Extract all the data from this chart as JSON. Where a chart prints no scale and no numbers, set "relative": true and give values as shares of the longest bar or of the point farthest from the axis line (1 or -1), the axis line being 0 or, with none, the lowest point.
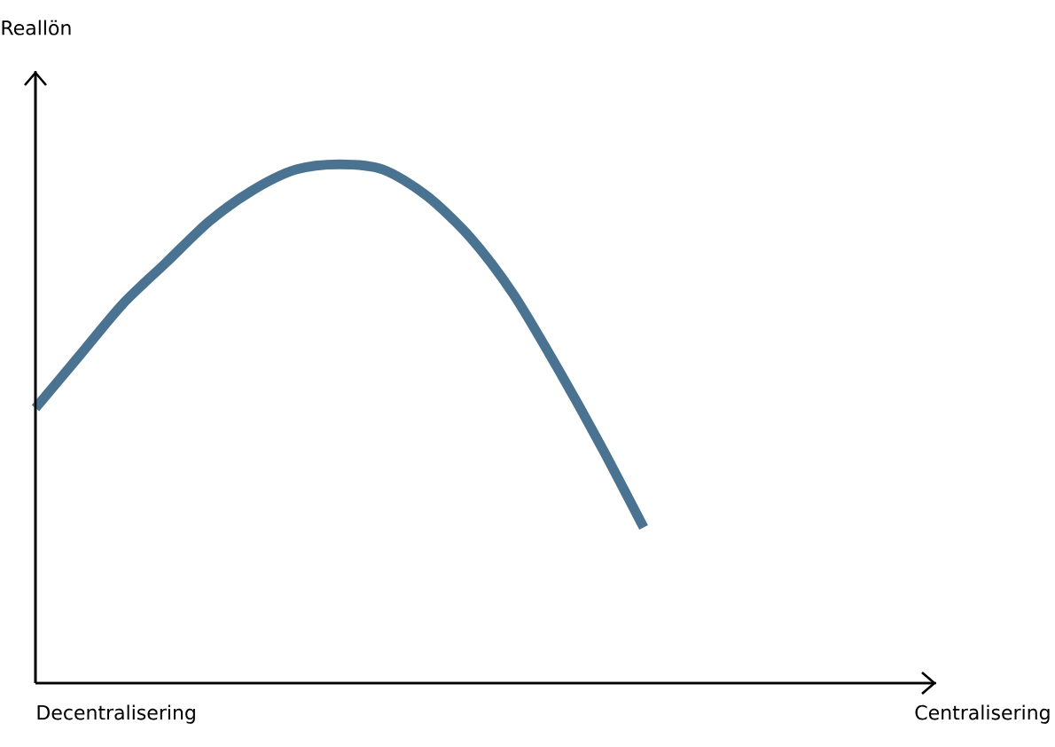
{
  "chart_data": {
    "type": "line",
    "relative": true,
    "annotations": [
      "Reallön",
      "Decentralisering",
      "Centralisering"
    ],
    "categories": [
      null,
      null,
      null,
      null,
      null,
      null,
      null,
      null,
      null,
      null,
      null,
      null,
      null,
      null,
      null
    ],
    "series": [
      {
        "color": "#4a7391",
        "values": [
          0.53,
          0.63,
          0.73,
          0.81,
          0.89,
          0.95,
          0.99,
          1,
          0.99,
          0.94,
          0.86,
          0.75,
          0.61,
          0.46,
          0.3
        ]
      }
    ],
    "marker": "none",
    "line_style": "solid"
  }
}
